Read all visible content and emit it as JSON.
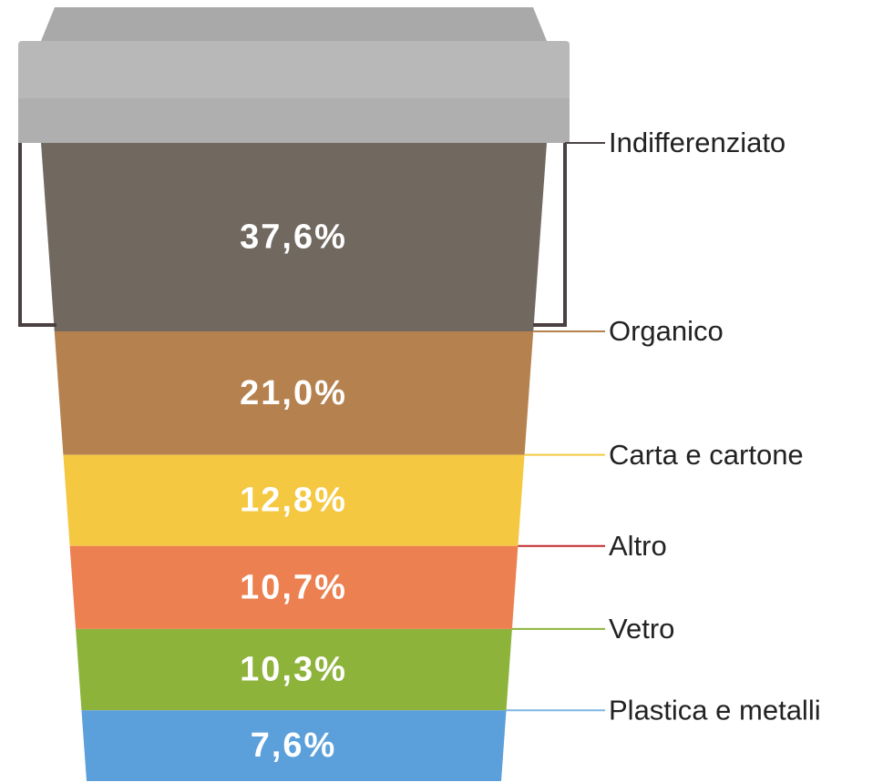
{
  "chart_data": {
    "type": "stack",
    "categories": [
      "Indifferenziato",
      "Organico",
      "Carta e cartone",
      "Altro",
      "Vetro",
      "Plastica e metalli"
    ],
    "values": [
      37.6,
      21.0,
      12.8,
      10.7,
      10.3,
      7.6
    ],
    "value_labels": [
      "37,6%",
      "21,0%",
      "12,8%",
      "10,7%",
      "10,3%",
      "7,6%"
    ],
    "colors": [
      "#716860",
      "#b5814e",
      "#f5c842",
      "#ec8050",
      "#8db33b",
      "#5b9fdb"
    ],
    "leader_colors": [
      "#4a4444",
      "#b5814e",
      "#f5c842",
      "#c0282a",
      "#8db33b",
      "#7fb6e6"
    ]
  }
}
